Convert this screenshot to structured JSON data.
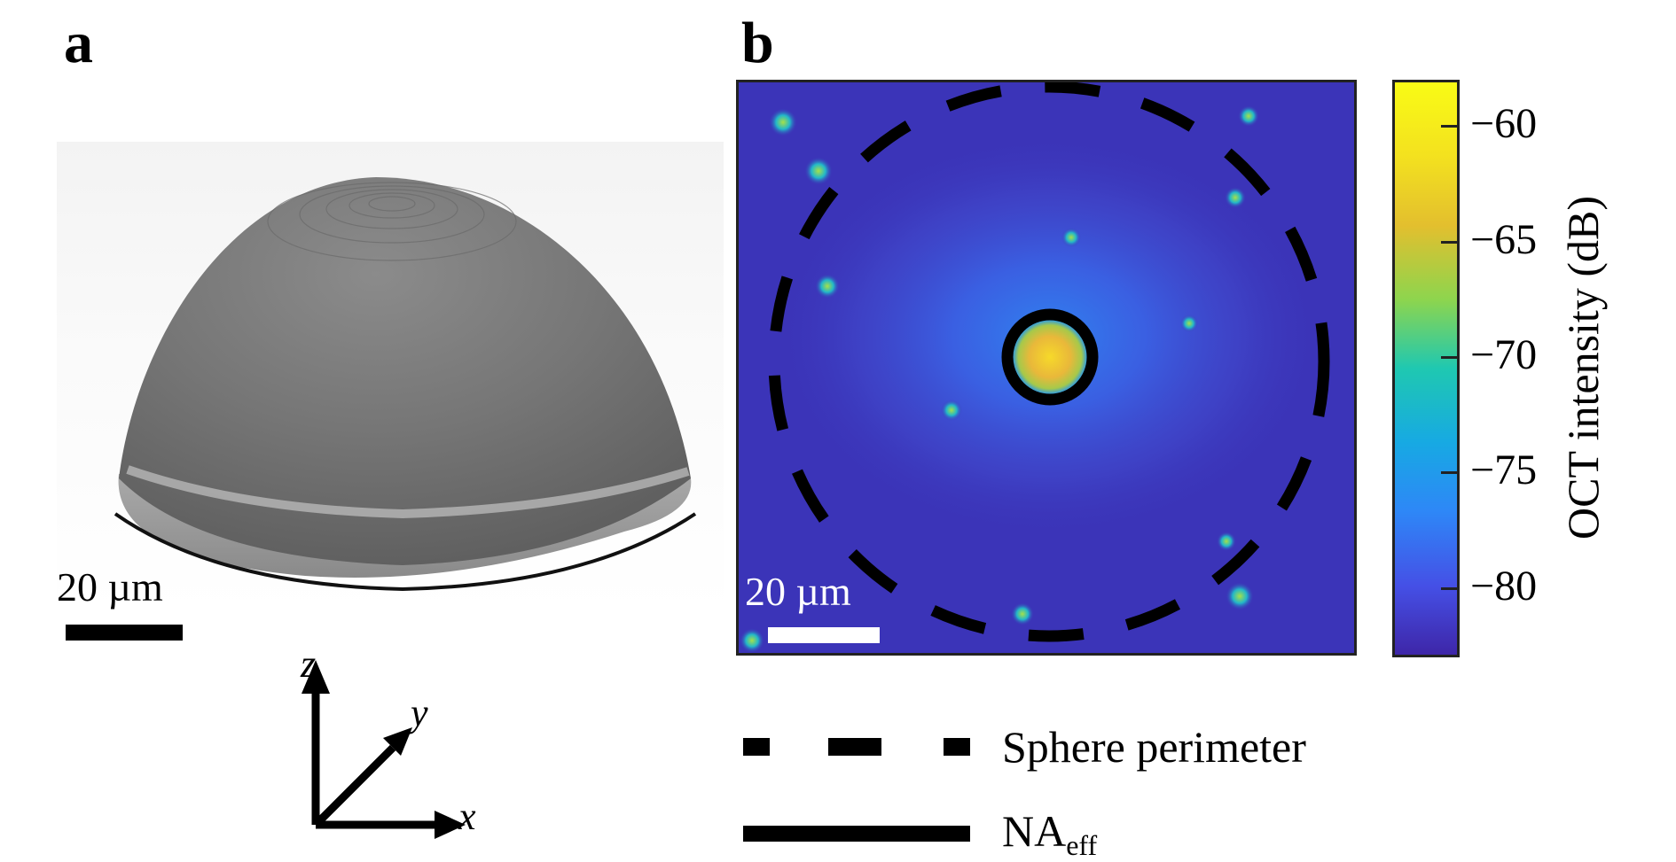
{
  "panels": {
    "a": {
      "label": "a",
      "scale_bar_text": "20 µm"
    },
    "b": {
      "label": "b",
      "scale_bar_text": "20  µm"
    }
  },
  "axes_triad": {
    "x": "x",
    "y": "y",
    "z": "z"
  },
  "colorbar": {
    "title": "OCT intensity (dB)",
    "ticks": [
      "−60",
      "−65",
      "−70",
      "−75",
      "−80"
    ],
    "tick_values": [
      -60,
      -65,
      -70,
      -75,
      -80
    ],
    "range": [
      -83,
      -58
    ],
    "colormap": [
      "#3e26a8",
      "#4550e6",
      "#2e87f7",
      "#17a9e3",
      "#1fc8b1",
      "#8dd54e",
      "#e3bf2e",
      "#f3e11f",
      "#f9fb15"
    ]
  },
  "legend": {
    "dashed_label": "Sphere perimeter",
    "solid_label_main": "NA",
    "solid_label_sub": "eff"
  },
  "colors": {
    "oct_background": "#3b34b8",
    "outline": "#000000"
  }
}
